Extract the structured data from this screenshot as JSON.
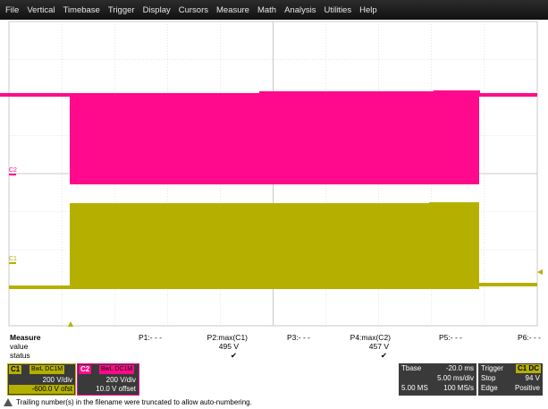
{
  "menu": [
    "File",
    "Vertical",
    "Timebase",
    "Trigger",
    "Display",
    "Cursors",
    "Measure",
    "Math",
    "Analysis",
    "Utilities",
    "Help"
  ],
  "colors": {
    "c1": "#b5b000",
    "c2": "#ff0a8c",
    "grid": "#c8c8c8"
  },
  "traces": {
    "c2_label": "C2",
    "c1_label": "C1"
  },
  "measure": {
    "row_labels": [
      "Measure",
      "value",
      "status"
    ],
    "params": [
      {
        "name": "P1:- - -",
        "value": "",
        "status": ""
      },
      {
        "name": "P2:max(C1)",
        "value": "495 V",
        "status": "✔"
      },
      {
        "name": "P3:- - -",
        "value": "",
        "status": ""
      },
      {
        "name": "P4:max(C2)",
        "value": "457 V",
        "status": "✔"
      },
      {
        "name": "P5:- - -",
        "value": "",
        "status": ""
      },
      {
        "name": "P6:- - -",
        "value": "",
        "status": ""
      }
    ]
  },
  "channels": [
    {
      "tag": "C1",
      "flags": "BwL DC1M",
      "vdiv": "200 V/div",
      "offset": "-600.0 V ofst"
    },
    {
      "tag": "C2",
      "flags": "BwL DC1M",
      "vdiv": "200 V/div",
      "offset": "10.0 V offset"
    }
  ],
  "timebase": {
    "label": "Tbase",
    "delay": "-20.0 ms",
    "tdiv": "5.00 ms/div",
    "samples": "5.00 MS",
    "rate": "100 MS/s"
  },
  "trigger": {
    "label": "Trigger",
    "source": "C1 DC",
    "mode": "Stop",
    "level": "94 V",
    "type": "Edge",
    "slope": "Positive"
  },
  "status_message": "Trailing number(s) in the filename were truncated to allow auto-numbering."
}
